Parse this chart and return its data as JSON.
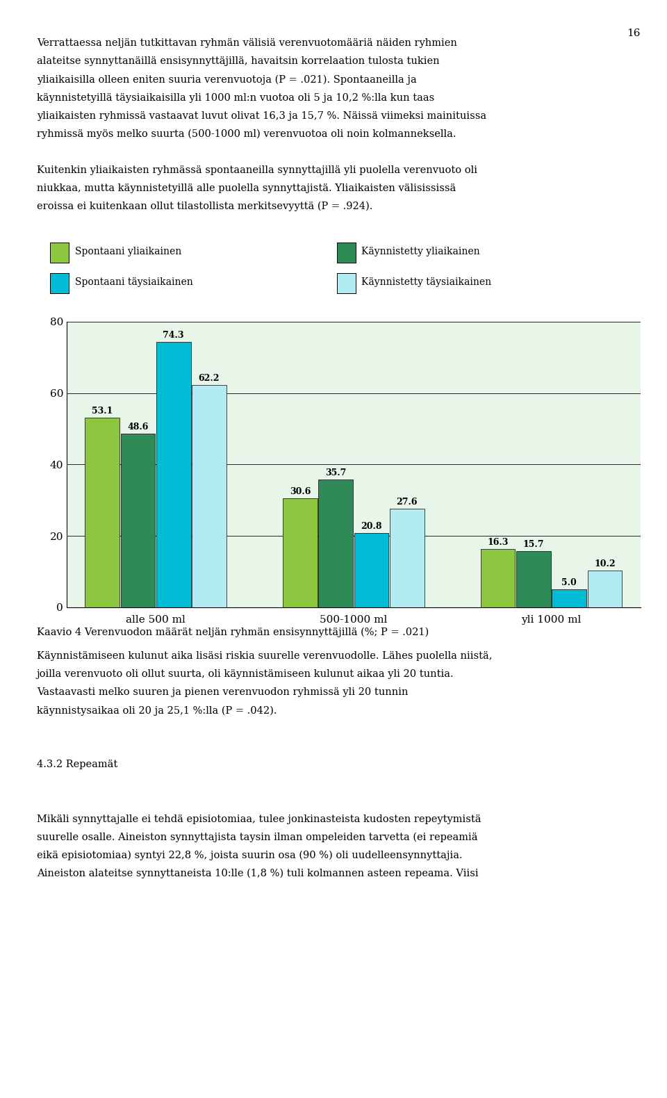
{
  "title": "",
  "caption": "Kaavio 4 Verenvuodon määrät neljän ryhmän ensisynnyttäjillä (%; P = .021)",
  "groups": [
    "alle 500 ml",
    "500-1000 ml",
    "yli 1000 ml"
  ],
  "series_labels": [
    "Spontaani yliaikainen",
    "Käynnistetty yliaikainen",
    "Spontaani täysiaikainen",
    "Käynnistetty täysiaikainen"
  ],
  "series_colors": [
    "#8dc63f",
    "#2e8b57",
    "#00bcd4",
    "#b2ebf2"
  ],
  "data": [
    [
      53.1,
      30.6,
      16.3
    ],
    [
      48.6,
      35.7,
      15.7
    ],
    [
      74.3,
      20.8,
      5.0
    ],
    [
      62.2,
      27.6,
      10.2
    ]
  ],
  "ylim": [
    0,
    80
  ],
  "yticks": [
    0,
    20,
    40,
    60,
    80
  ],
  "bar_width": 0.18,
  "plot_bg_color": "#e8f5e9",
  "text_color": "#000000",
  "page_number": "16",
  "top_text_lines": [
    "Verrattaessa neljän tutkittavan ryhmän välisiä verenvuotomääriä näiden ryhmien",
    "alateitse synnyttanäillä ensisynnyttäjillä, havaitsin korrelaation tulosta tukien",
    "yliaikaisilla olleen eniten suuria verenvuotoja (P = .021). Spontaaneilla ja",
    "käynnistetyillä täysiaikaisilla yli 1000 ml:n vuotoa oli 5 ja 10,2 %:lla kun taas",
    "yliaikaisten ryhmissä vastaavat luvut olivat 16,3 ja 15,7 %. Näissä viimeksi mainituissa",
    "ryhmissä myös melko suurta (500-1000 ml) verenvuotoa oli noin kolmanneksella.",
    "",
    "Kuitenkin yliaikaisten ryhmässä spontaaneilla synnyttajillä yli puolella verenvuoto oli",
    "niukkaa, mutta käynnistetyillä alle puolella synnyttajistä. Yliaikaisten välisississä",
    "eroissa ei kuitenkaan ollut tilastollista merkitsevyyttä (P = .924)."
  ],
  "bottom_text_lines": [
    "Käynnistämiseen kulunut aika lisäsi riskia suurelle verenvuodolle. Lähes puolella niistä,",
    "joilla verenvuoto oli ollut suurta, oli käynnistämiseen kulunut aikaa yli 20 tuntia.",
    "Vastaavasti melko suuren ja pienen verenvuodon ryhmissä yli 20 tunnin",
    "käynnistysaikaa oli 20 ja 25,1 %:lla (P = .042).",
    "",
    "",
    "4.3.2 Repeamät",
    "",
    "",
    "Mikäli synnyttajalle ei tehdä episiotomiaa, tulee jonkinasteista kudosten repeytymistä",
    "suurelle osalle. Aineiston synnyttajista taysin ilman ompeleiden tarvetta (ei repeamiä",
    "eikä episiotomiaa) syntyi 22,8 %, joista suurin osa (90 %) oli uudelleensynnyttajia.",
    "Aineiston alateitse synnyttaneista 10:lle (1,8 %) tuli kolmannen asteen repeama. Viisi"
  ]
}
